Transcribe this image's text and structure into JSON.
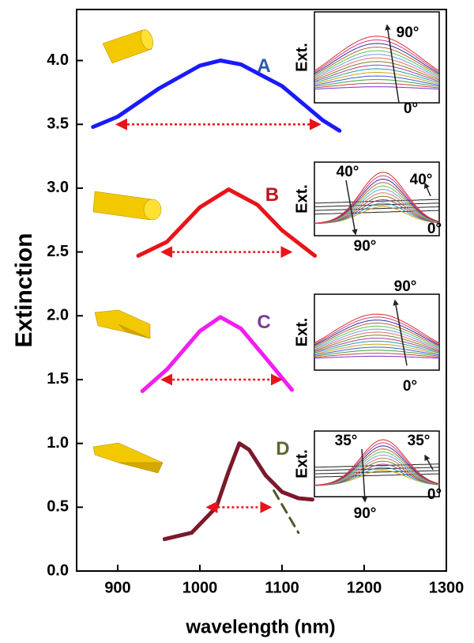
{
  "chart_data": {
    "type": "line",
    "xlabel": "wavelength (nm)",
    "ylabel": "Extinction",
    "xlim": [
      850,
      1300
    ],
    "xticks": [
      900,
      1000,
      1100,
      1200,
      1300
    ],
    "ylim": [
      0,
      4.4
    ],
    "yticks": [
      {
        "value": 0,
        "label": "0.0"
      },
      0.5,
      {
        "value": 1,
        "label": "1.0"
      },
      1.5,
      {
        "value": 2,
        "label": "2.0"
      },
      2.5,
      {
        "value": 3,
        "label": "3.0"
      },
      3.5,
      {
        "value": 4,
        "label": "4.0"
      }
    ],
    "series": [
      {
        "name": "A",
        "color": "#1a1aff",
        "label_color": "#2a5aa8",
        "x": [
          870,
          900,
          950,
          1000,
          1025,
          1050,
          1100,
          1150,
          1170
        ],
        "values": [
          3.48,
          3.56,
          3.78,
          3.96,
          4.0,
          3.97,
          3.8,
          3.53,
          3.45
        ]
      },
      {
        "name": "B",
        "color": "#e8141a",
        "label_color": "#c0141a",
        "x": [
          925,
          960,
          1000,
          1035,
          1070,
          1100,
          1140
        ],
        "values": [
          2.47,
          2.58,
          2.85,
          2.99,
          2.87,
          2.67,
          2.47
        ]
      },
      {
        "name": "C",
        "color": "#f01ef0",
        "label_color": "#7a3a9a",
        "x": [
          930,
          960,
          1000,
          1025,
          1050,
          1080,
          1112
        ],
        "values": [
          1.41,
          1.58,
          1.88,
          1.99,
          1.9,
          1.67,
          1.42
        ]
      },
      {
        "name": "D",
        "color": "#7a1a2a",
        "label_color": "#5a6a2a",
        "x": [
          957,
          990,
          1020,
          1035,
          1048,
          1060,
          1080,
          1100,
          1120,
          1137
        ],
        "values": [
          0.25,
          0.3,
          0.5,
          0.78,
          1.0,
          0.95,
          0.75,
          0.62,
          0.57,
          0.56
        ]
      },
      {
        "color": "#4a5a2a",
        "dashed": true,
        "x": [
          1090,
          1120
        ],
        "values": [
          0.63,
          0.3
        ]
      }
    ],
    "widths": [
      {
        "x": [
          900,
          1145
        ],
        "y": 3.5,
        "color": "#e8141a"
      },
      {
        "x": [
          955,
          1110
        ],
        "y": 2.5,
        "color": "#e8141a"
      },
      {
        "x": [
          955,
          1098
        ],
        "y": 1.5,
        "color": "#e8141a"
      },
      {
        "x": [
          1010,
          1085
        ],
        "y": 0.5,
        "color": "#e8141a"
      }
    ],
    "insets": [
      {
        "ylabel": "Ext.",
        "labels": [
          "90°",
          "0°"
        ]
      },
      {
        "ylabel": "Ext.",
        "labels": [
          "40°",
          "40°",
          "0°",
          "90°"
        ]
      },
      {
        "ylabel": "Ext.",
        "labels": [
          "90°",
          "0°"
        ]
      },
      {
        "ylabel": "Ext.",
        "labels": [
          "35°",
          "35°",
          "0°",
          "90°"
        ]
      }
    ]
  }
}
